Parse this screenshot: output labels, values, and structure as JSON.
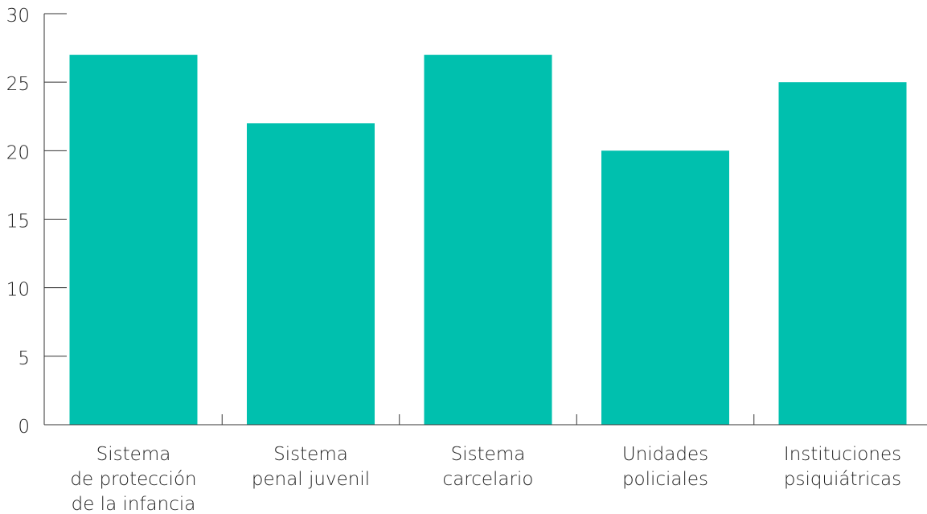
{
  "chart_data": {
    "type": "bar",
    "title": "",
    "xlabel": "",
    "ylabel": "",
    "categories": [
      [
        "Sistema",
        "de protección",
        "de la infancia"
      ],
      [
        "Sistema",
        "penal juvenil"
      ],
      [
        "Sistema",
        "carcelario"
      ],
      [
        "Unidades",
        "policiales"
      ],
      [
        "Instituciones",
        "psiquiátricas"
      ]
    ],
    "values": [
      27,
      22,
      27,
      20,
      25
    ],
    "ylim": [
      0,
      30
    ],
    "yticks": [
      0,
      5,
      10,
      15,
      20,
      25,
      30
    ],
    "bar_color": "#00c0ae",
    "axis_color": "#333333",
    "grid": false,
    "legend": "none"
  }
}
